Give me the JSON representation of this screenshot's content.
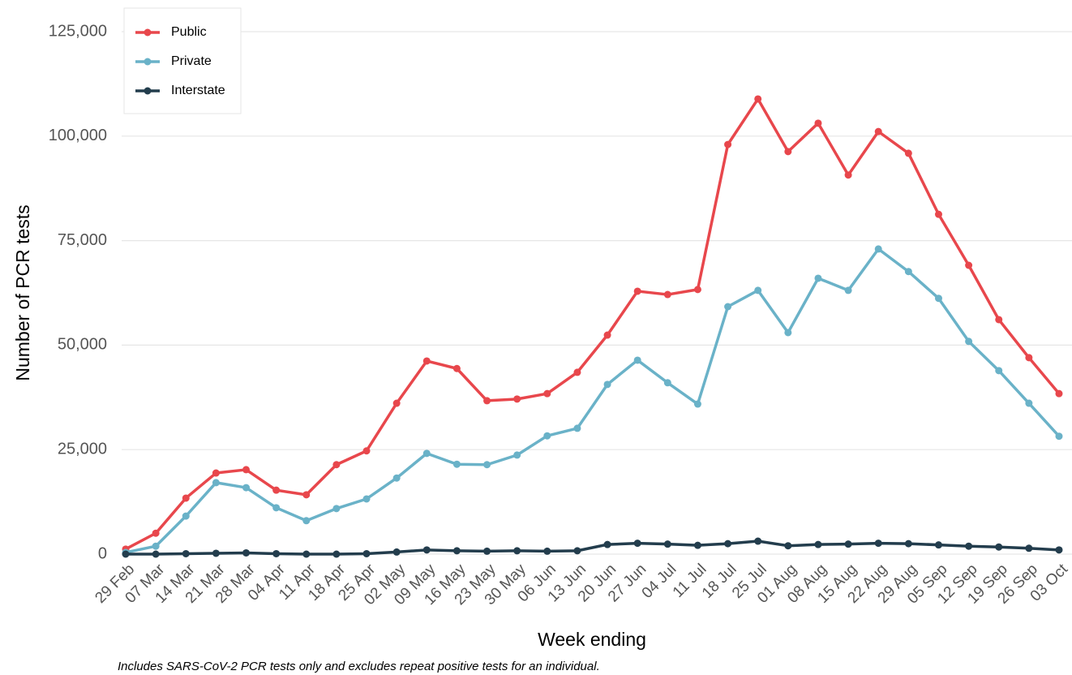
{
  "chart_data": {
    "type": "line",
    "x_label": "Week ending",
    "y_label": "Number of PCR tests",
    "note": "Includes SARS-CoV-2 PCR tests only and excludes repeat positive tests for an individual.",
    "categories": [
      "29 Feb",
      "07 Mar",
      "14 Mar",
      "21 Mar",
      "28 Mar",
      "04 Apr",
      "11 Apr",
      "18 Apr",
      "25 Apr",
      "02 May",
      "09 May",
      "16 May",
      "23 May",
      "30 May",
      "06 Jun",
      "13 Jun",
      "20 Jun",
      "27 Jun",
      "04 Jul",
      "11 Jul",
      "18 Jul",
      "25 Jul",
      "01 Aug",
      "08 Aug",
      "15 Aug",
      "22 Aug",
      "29 Aug",
      "05 Sep",
      "12 Sep",
      "19 Sep",
      "26 Sep",
      "03 Oct"
    ],
    "series": [
      {
        "name": "Public",
        "color": "#e8474c",
        "values": [
          1200,
          5000,
          13400,
          19400,
          20200,
          15300,
          14200,
          21400,
          24700,
          36100,
          46200,
          44400,
          36700,
          37100,
          38400,
          43500,
          52400,
          62900,
          62100,
          63300,
          98000,
          108900,
          96300,
          103100,
          90700,
          101100,
          95900,
          81300,
          69100,
          56100,
          47000,
          38400
        ]
      },
      {
        "name": "Private",
        "color": "#6ab2c8",
        "values": [
          400,
          1900,
          9100,
          17100,
          15900,
          11100,
          8000,
          10900,
          13200,
          18200,
          24100,
          21500,
          21400,
          23700,
          28300,
          30100,
          40600,
          46400,
          41000,
          35900,
          59200,
          63100,
          53000,
          66000,
          63100,
          73000,
          67600,
          61200,
          50900,
          43900,
          36100,
          28200
        ]
      },
      {
        "name": "Interstate",
        "color": "#233d4d",
        "values": [
          0,
          0,
          100,
          200,
          300,
          100,
          0,
          0,
          100,
          500,
          1000,
          800,
          700,
          800,
          700,
          800,
          2300,
          2600,
          2400,
          2100,
          2500,
          3100,
          2000,
          2300,
          2400,
          2600,
          2500,
          2200,
          1900,
          1700,
          1400,
          1000
        ]
      }
    ],
    "ylim": [
      0,
      125000
    ],
    "yticks": [
      0,
      {
        "value": 25000,
        "label": "25,000"
      },
      {
        "value": 50000,
        "label": "50,000"
      },
      {
        "value": 75000,
        "label": "75,000"
      },
      {
        "value": 100000,
        "label": "100,000"
      },
      {
        "value": 125000,
        "label": "125,000"
      }
    ],
    "grid": true,
    "legend": "top-left"
  }
}
